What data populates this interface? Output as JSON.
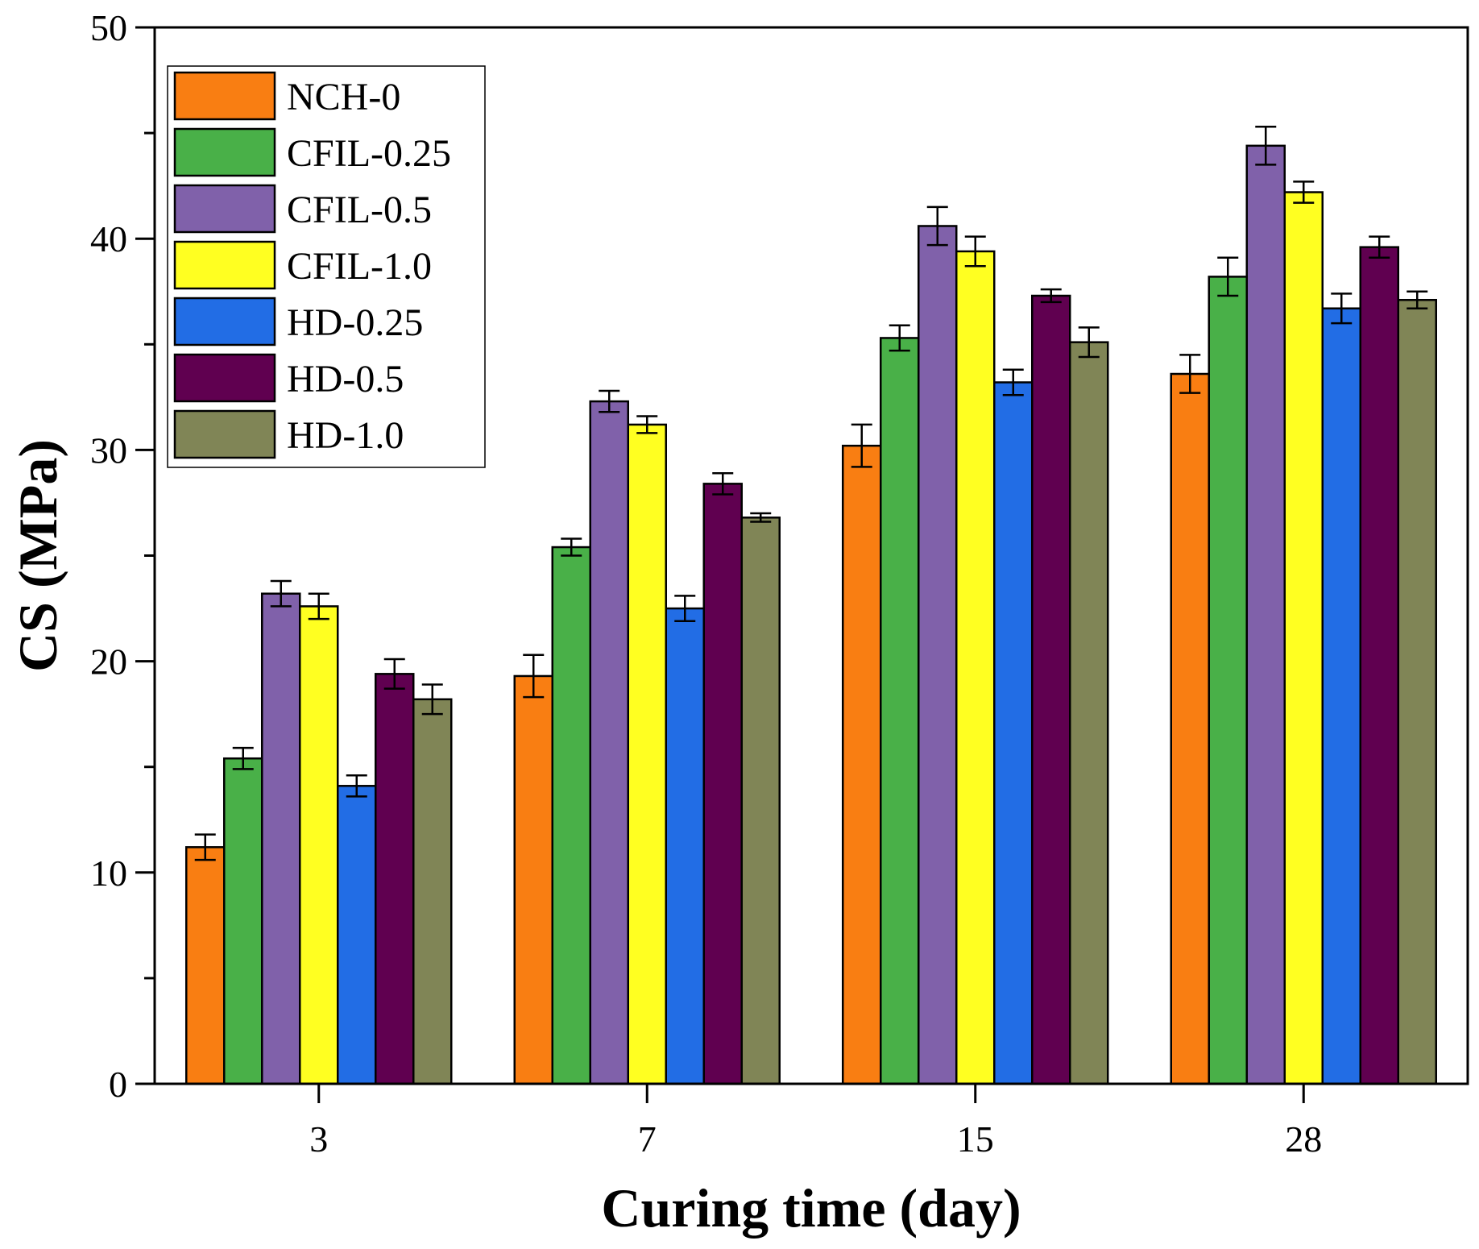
{
  "chart_data": {
    "type": "bar",
    "title": "",
    "xlabel": "Curing time (day)",
    "ylabel": "CS (MPa)",
    "categories": [
      "3",
      "7",
      "15",
      "28"
    ],
    "ylim": [
      0,
      50
    ],
    "yticks": [
      0,
      10,
      20,
      30,
      40,
      50
    ],
    "minor_ticks": true,
    "grid": false,
    "legend_position": "top-left",
    "series": [
      {
        "name": "NCH-0",
        "color": "#F97E12",
        "values": [
          11.2,
          19.3,
          30.2,
          33.6
        ],
        "errors": [
          0.6,
          1.0,
          1.0,
          0.9
        ]
      },
      {
        "name": "CFIL-0.25",
        "color": "#49B048",
        "values": [
          15.4,
          25.4,
          35.3,
          38.2
        ],
        "errors": [
          0.5,
          0.4,
          0.6,
          0.9
        ]
      },
      {
        "name": "CFIL-0.5",
        "color": "#8061AA",
        "values": [
          23.2,
          32.3,
          40.6,
          44.4
        ],
        "errors": [
          0.6,
          0.5,
          0.9,
          0.9
        ]
      },
      {
        "name": "CFIL-1.0",
        "color": "#FFFF21",
        "values": [
          22.6,
          31.2,
          39.4,
          42.2
        ],
        "errors": [
          0.6,
          0.4,
          0.7,
          0.5
        ]
      },
      {
        "name": "HD-0.25",
        "color": "#226DE5",
        "values": [
          14.1,
          22.5,
          33.2,
          36.7
        ],
        "errors": [
          0.5,
          0.6,
          0.6,
          0.7
        ]
      },
      {
        "name": "HD-0.5",
        "color": "#600050",
        "values": [
          19.4,
          28.4,
          37.3,
          39.6
        ],
        "errors": [
          0.7,
          0.5,
          0.3,
          0.5
        ]
      },
      {
        "name": "HD-1.0",
        "color": "#808556",
        "values": [
          18.2,
          26.8,
          35.1,
          37.1
        ],
        "errors": [
          0.7,
          0.2,
          0.7,
          0.4
        ]
      }
    ]
  }
}
